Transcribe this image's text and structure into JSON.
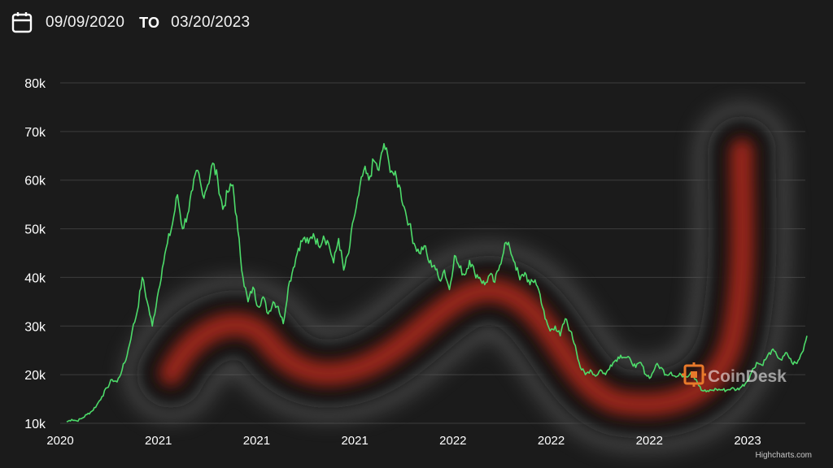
{
  "header": {
    "start_date": "09/09/2020",
    "to_label": "TO",
    "end_date": "03/20/2023",
    "icon": "calendar-icon"
  },
  "watermark": {
    "brand": "CoinDesk",
    "icon": "coindesk-logo-icon",
    "color": "#e8792b"
  },
  "credits": "Highcharts.com",
  "colors": {
    "line": "#4ddb6a",
    "background": "#1b1b1b",
    "grid": "#3c3c3c",
    "overlay_red": "#b02a1a"
  },
  "chart_data": {
    "type": "line",
    "title": "",
    "xlabel": "",
    "ylabel": "",
    "ylim": [
      10000,
      80000
    ],
    "y_ticks": [
      {
        "value": 10000,
        "label": "10k"
      },
      {
        "value": 20000,
        "label": "20k"
      },
      {
        "value": 30000,
        "label": "30k"
      },
      {
        "value": 40000,
        "label": "40k"
      },
      {
        "value": 50000,
        "label": "50k"
      },
      {
        "value": 60000,
        "label": "60k"
      },
      {
        "value": 70000,
        "label": "70k"
      },
      {
        "value": 80000,
        "label": "80k"
      }
    ],
    "x_tick_labels": [
      "2020",
      "2021",
      "2021",
      "2021",
      "2022",
      "2022",
      "2022",
      "2023"
    ],
    "grid": true,
    "legend": "none",
    "series": [
      {
        "values": [
          10300,
          10800,
          10500,
          11000,
          11800,
          12500,
          13800,
          15500,
          17300,
          19000,
          18500,
          21000,
          24000,
          29000,
          33000,
          40000,
          35000,
          30000,
          36000,
          42000,
          47000,
          51000,
          57000,
          50000,
          53000,
          58000,
          62000,
          57000,
          59000,
          63500,
          60000,
          54000,
          57500,
          59000,
          49500,
          40000,
          35000,
          38000,
          34000,
          36000,
          32500,
          35000,
          34000,
          30500,
          38000,
          42000,
          46000,
          48000,
          47000,
          49000,
          46500,
          48500,
          47000,
          43000,
          48000,
          41500,
          45000,
          52000,
          57000,
          62000,
          60000,
          64000,
          62000,
          67500,
          63500,
          61000,
          59000,
          54500,
          51000,
          47000,
          45000,
          46500,
          43000,
          42500,
          39500,
          41500,
          37500,
          44500,
          42000,
          40500,
          43500,
          41000,
          40000,
          38500,
          40500,
          39000,
          42500,
          47000,
          46000,
          43000,
          39500,
          41000,
          38500,
          39500,
          36500,
          31500,
          29000,
          30000,
          28000,
          31500,
          29000,
          26000,
          21500,
          20000,
          21000,
          19700,
          21000,
          20000,
          22000,
          23000,
          24000,
          23500,
          23000,
          21500,
          22500,
          20000,
          19500,
          22000,
          21500,
          20000,
          20500,
          19500,
          20000,
          19600,
          20500,
          19000,
          16800,
          16500,
          16800,
          17000,
          16900,
          16800,
          17200,
          16900,
          17500,
          18500,
          20500,
          22500,
          22000,
          23500,
          25000,
          24000,
          23000,
          24500,
          22500,
          22300,
          24500,
          28000
        ]
      }
    ]
  }
}
